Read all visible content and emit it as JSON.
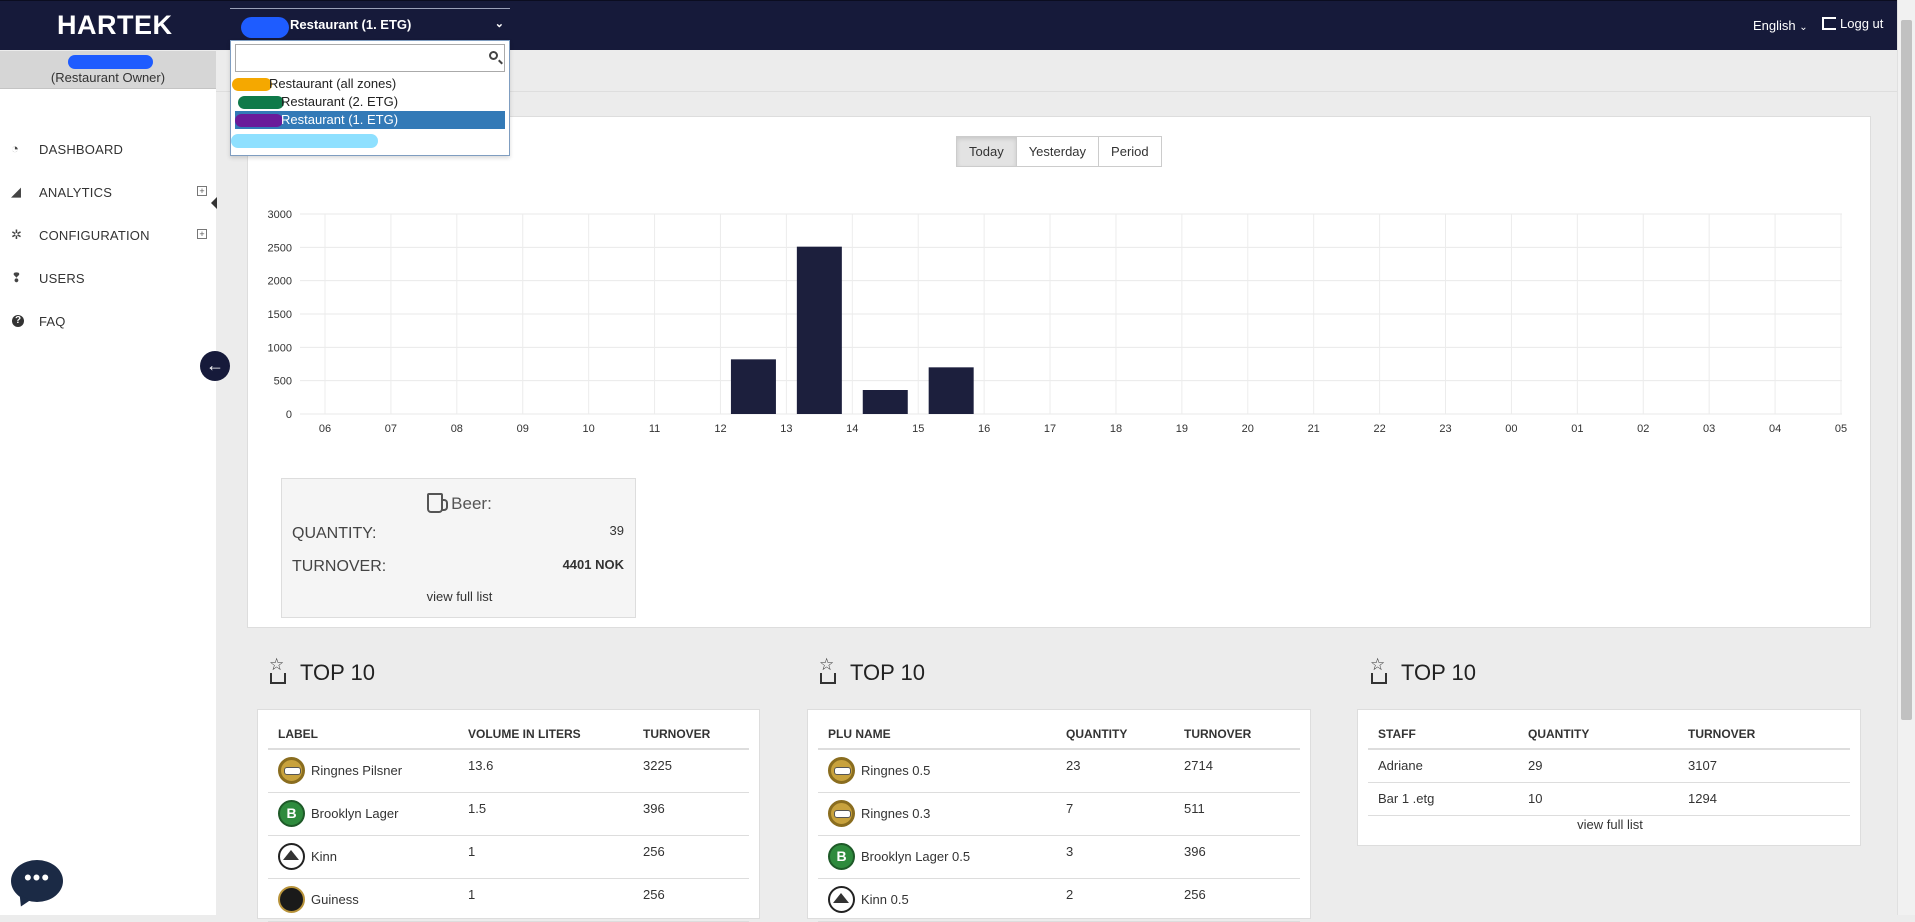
{
  "app": {
    "brand": "HARTEK"
  },
  "topbar": {
    "zone_selected": "Restaurant (1. ETG)",
    "language": "English",
    "logout": "Logg ut"
  },
  "zone_dropdown": {
    "search_placeholder": "",
    "options": [
      {
        "label": "Restaurant (all zones)",
        "selected": false,
        "marker_color": "#f5a800"
      },
      {
        "label": "Restaurant (2. ETG)",
        "selected": false,
        "marker_color": "#0f7a4a"
      },
      {
        "label": "Restaurant (1. ETG)",
        "selected": true,
        "marker_color": "#6a1b9a"
      }
    ]
  },
  "user": {
    "role": "(Restaurant Owner)"
  },
  "sidebar": {
    "items": [
      {
        "label": "DASHBOARD",
        "icon": "gauge-icon",
        "expandable": false
      },
      {
        "label": "ANALYTICS",
        "icon": "area-chart-icon",
        "expandable": true
      },
      {
        "label": "CONFIGURATION",
        "icon": "gears-icon",
        "expandable": true
      },
      {
        "label": "USERS",
        "icon": "users-icon",
        "expandable": false
      },
      {
        "label": "FAQ",
        "icon": "question-circle-icon",
        "expandable": false
      }
    ]
  },
  "period": {
    "buttons": [
      "Today",
      "Yesterday",
      "Period"
    ],
    "active": "Today"
  },
  "chart_data": {
    "type": "bar",
    "categories": [
      "06",
      "07",
      "08",
      "09",
      "10",
      "11",
      "12",
      "13",
      "14",
      "15",
      "16",
      "17",
      "18",
      "19",
      "20",
      "21",
      "22",
      "23",
      "00",
      "01",
      "02",
      "03",
      "04",
      "05"
    ],
    "values": [
      0,
      0,
      0,
      0,
      0,
      0,
      820,
      2510,
      360,
      700,
      0,
      0,
      0,
      0,
      0,
      0,
      0,
      0,
      0,
      0,
      0,
      0,
      0,
      0
    ],
    "yticks": [
      0,
      500,
      1000,
      1500,
      2000,
      2500,
      3000
    ],
    "ylim": [
      0,
      3000
    ],
    "grid": true,
    "bar_color": "#1c1f3d"
  },
  "beer_card": {
    "title": "Beer:",
    "quantity_label": "QUANTITY:",
    "quantity_value": "39",
    "turnover_label": "TURNOVER:",
    "turnover_value": "4401 NOK",
    "link": "view full list"
  },
  "top10": [
    {
      "title": "TOP 10",
      "columns": [
        "LABEL",
        "VOLUME IN LITERS",
        "TURNOVER"
      ],
      "rows": [
        {
          "logo": "ringnes",
          "cells": [
            "Ringnes Pilsner",
            "13.6",
            "3225"
          ]
        },
        {
          "logo": "brooklyn",
          "cells": [
            "Brooklyn Lager",
            "1.5",
            "396"
          ]
        },
        {
          "logo": "kinn",
          "cells": [
            "Kinn",
            "1",
            "256"
          ]
        },
        {
          "logo": "guiness",
          "cells": [
            "Guiness",
            "1",
            "256"
          ]
        }
      ]
    },
    {
      "title": "TOP 10",
      "columns": [
        "PLU NAME",
        "QUANTITY",
        "TURNOVER"
      ],
      "rows": [
        {
          "logo": "ringnes",
          "cells": [
            "Ringnes 0.5",
            "23",
            "2714"
          ]
        },
        {
          "logo": "ringnes",
          "cells": [
            "Ringnes 0.3",
            "7",
            "511"
          ]
        },
        {
          "logo": "brooklyn",
          "cells": [
            "Brooklyn Lager 0.5",
            "3",
            "396"
          ]
        },
        {
          "logo": "kinn",
          "cells": [
            "Kinn 0.5",
            "2",
            "256"
          ]
        }
      ]
    },
    {
      "title": "TOP 10",
      "columns": [
        "STAFF",
        "QUANTITY",
        "TURNOVER"
      ],
      "rows": [
        {
          "logo": "",
          "cells": [
            "Adriane",
            "29",
            "3107"
          ]
        },
        {
          "logo": "",
          "cells": [
            "Bar 1 .etg",
            "10",
            "1294"
          ]
        }
      ],
      "link": "view full list"
    }
  ]
}
